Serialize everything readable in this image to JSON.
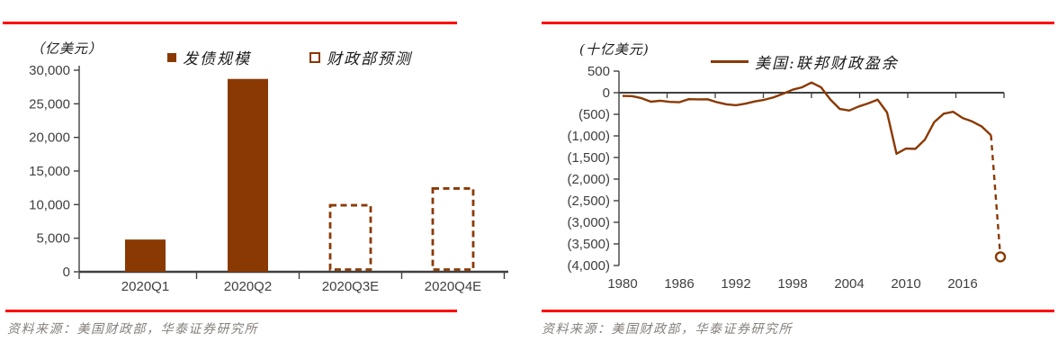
{
  "colors": {
    "brand_brown": "#8B3903",
    "rule_red": "#FE0000",
    "axis_gray": "#404040",
    "source_gray": "#85807B"
  },
  "chart_data": [
    {
      "type": "bar",
      "unit_label": "（亿美元）",
      "categories": [
        "2020Q1",
        "2020Q2",
        "2020Q3E",
        "2020Q4E"
      ],
      "series": [
        {
          "name": "发债规模",
          "style": "solid",
          "values": [
            4800,
            28700,
            null,
            null
          ]
        },
        {
          "name": "财政部预测",
          "style": "dashed-outline",
          "values": [
            null,
            null,
            9900,
            12400
          ]
        }
      ],
      "ylim": [
        0,
        30000
      ],
      "ytick_step": 5000,
      "ytick_labels": [
        "0",
        "5,000",
        "10,000",
        "15,000",
        "20,000",
        "25,000",
        "30,000"
      ],
      "grid": false,
      "legend_position": "top",
      "source": "资料来源：美国财政部，华泰证券研究所"
    },
    {
      "type": "line",
      "unit_label": "(十亿美元)",
      "series_name": "美国:联邦财政盈余",
      "x": [
        1980,
        1981,
        1982,
        1983,
        1984,
        1985,
        1986,
        1987,
        1988,
        1989,
        1990,
        1991,
        1992,
        1993,
        1994,
        1995,
        1996,
        1997,
        1998,
        1999,
        2000,
        2001,
        2002,
        2003,
        2004,
        2005,
        2006,
        2007,
        2008,
        2009,
        2010,
        2011,
        2012,
        2013,
        2014,
        2015,
        2016,
        2017,
        2018,
        2019,
        2020
      ],
      "values": [
        -74,
        -79,
        -128,
        -208,
        -185,
        -212,
        -221,
        -150,
        -155,
        -153,
        -221,
        -269,
        -290,
        -255,
        -203,
        -164,
        -107,
        -22,
        69,
        126,
        236,
        128,
        -158,
        -378,
        -413,
        -318,
        -248,
        -161,
        -459,
        -1413,
        -1294,
        -1300,
        -1087,
        -680,
        -485,
        -442,
        -585,
        -665,
        -779,
        -984,
        -3800
      ],
      "forecast_from_year": 2019,
      "forecast_marker": "open-circle",
      "ylim": [
        -4000,
        500
      ],
      "ytick_step": 500,
      "ytick_labels": [
        "500",
        "0",
        "(500)",
        "(1,000)",
        "(1,500)",
        "(2,000)",
        "(2,500)",
        "(3,000)",
        "(3,500)",
        "(4,000)"
      ],
      "xtick_labels": [
        1980,
        1986,
        1992,
        1998,
        2004,
        2010,
        2016
      ],
      "grid": false,
      "legend_position": "top",
      "source": "资料来源：美国财政部，华泰证券研究所"
    }
  ]
}
